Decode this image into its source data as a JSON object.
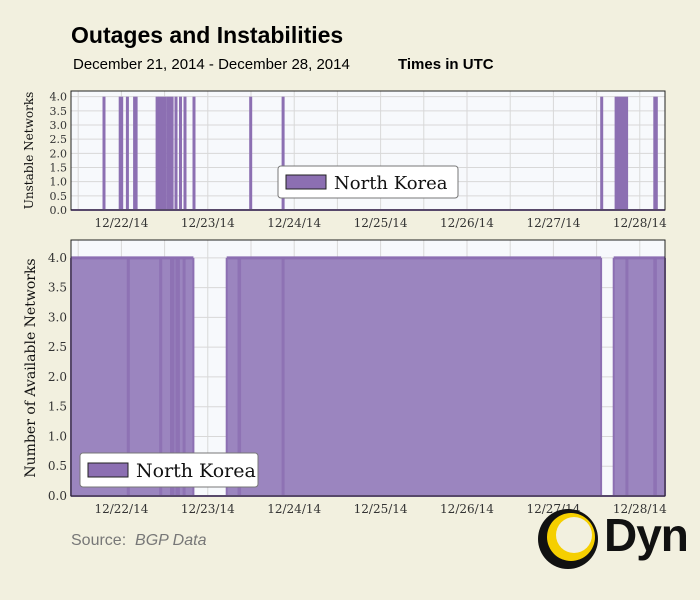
{
  "header": {
    "title": "Outages and Instabilities",
    "date_range": "December 21, 2014 - December 28, 2014",
    "timezone": "Times in UTC"
  },
  "source": {
    "label": "Source:",
    "value": "BGP Data"
  },
  "logo": {
    "text": "Dyn",
    "colors": [
      "#f5cf00",
      "#111111"
    ]
  },
  "colors": {
    "series": "#8c6fb2",
    "series_fill": "#9b85bf",
    "plot_bg": "#f7f9fc",
    "page_bg": "#f2f0df"
  },
  "chart_data": [
    {
      "type": "bar",
      "ylabel": "Unstable Networks",
      "ylim": [
        0,
        4.2
      ],
      "yticks": [
        "0.0",
        "0.5",
        "1.0",
        "1.5",
        "2.0",
        "2.5",
        "3.0",
        "3.5",
        "4.0"
      ],
      "xlim": [
        "2014-12-21T10:00",
        "2014-12-28T07:00"
      ],
      "xticks": [
        "12/22/14",
        "12/23/14",
        "12/24/14",
        "12/25/14",
        "12/26/14",
        "12/27/14",
        "12/28/14"
      ],
      "grid": true,
      "legend": {
        "position": "center",
        "entries": [
          "North Korea"
        ]
      },
      "series": [
        {
          "name": "North Korea",
          "spikes": [
            {
              "start": "2014-12-21T18:45",
              "end": "2014-12-21T19:00",
              "value": 4
            },
            {
              "start": "2014-12-21T23:15",
              "end": "2014-12-22T00:30",
              "value": 4
            },
            {
              "start": "2014-12-22T01:15",
              "end": "2014-12-22T01:30",
              "value": 4
            },
            {
              "start": "2014-12-22T03:15",
              "end": "2014-12-22T04:30",
              "value": 4
            },
            {
              "start": "2014-12-22T09:30",
              "end": "2014-12-22T10:00",
              "value": 4
            },
            {
              "start": "2014-12-22T10:15",
              "end": "2014-12-22T12:30",
              "value": 4
            },
            {
              "start": "2014-12-22T12:30",
              "end": "2014-12-22T14:30",
              "value": 4
            },
            {
              "start": "2014-12-22T14:45",
              "end": "2014-12-22T15:30",
              "value": 4
            },
            {
              "start": "2014-12-22T16:00",
              "end": "2014-12-22T16:15",
              "value": 4
            },
            {
              "start": "2014-12-22T17:15",
              "end": "2014-12-22T17:30",
              "value": 4
            },
            {
              "start": "2014-12-22T19:45",
              "end": "2014-12-22T20:00",
              "value": 4
            },
            {
              "start": "2014-12-23T11:30",
              "end": "2014-12-23T12:00",
              "value": 4
            },
            {
              "start": "2014-12-23T20:30",
              "end": "2014-12-23T21:15",
              "value": 4
            },
            {
              "start": "2014-12-27T13:00",
              "end": "2014-12-27T13:45",
              "value": 4
            },
            {
              "start": "2014-12-27T17:00",
              "end": "2014-12-27T17:30",
              "value": 4
            },
            {
              "start": "2014-12-27T17:45",
              "end": "2014-12-27T20:45",
              "value": 4
            },
            {
              "start": "2014-12-28T03:45",
              "end": "2014-12-28T05:00",
              "value": 4
            }
          ]
        }
      ]
    },
    {
      "type": "area",
      "ylabel": "Number of Available Networks",
      "ylim": [
        0,
        4.3
      ],
      "yticks": [
        "0.0",
        "0.5",
        "1.0",
        "1.5",
        "2.0",
        "2.5",
        "3.0",
        "3.5",
        "4.0"
      ],
      "xlim": [
        "2014-12-21T10:00",
        "2014-12-28T07:00"
      ],
      "xticks": [
        "12/22/14",
        "12/23/14",
        "12/24/14",
        "12/25/14",
        "12/26/14",
        "12/27/14",
        "12/28/14"
      ],
      "grid": true,
      "legend": {
        "position": "bottom-left",
        "entries": [
          "North Korea"
        ]
      },
      "series": [
        {
          "name": "North Korea",
          "baseline": 4,
          "outages": [
            {
              "start": "2014-12-22T20:00",
              "end": "2014-12-23T05:15",
              "value": 0
            },
            {
              "start": "2014-12-27T13:15",
              "end": "2014-12-27T16:45",
              "value": 0
            }
          ],
          "dips": [
            {
              "start": "2014-12-22T01:30",
              "end": "2014-12-22T02:15",
              "value": 0
            },
            {
              "start": "2014-12-22T10:30",
              "end": "2014-12-22T11:15",
              "value": 0
            },
            {
              "start": "2014-12-22T13:30",
              "end": "2014-12-22T14:45",
              "value": 0
            },
            {
              "start": "2014-12-22T15:00",
              "end": "2014-12-22T16:15",
              "value": 0
            },
            {
              "start": "2014-12-22T17:00",
              "end": "2014-12-22T17:45",
              "value": 0
            },
            {
              "start": "2014-12-23T08:15",
              "end": "2014-12-23T09:15",
              "value": 0
            },
            {
              "start": "2014-12-23T20:30",
              "end": "2014-12-23T21:15",
              "value": 0
            },
            {
              "start": "2014-12-27T20:00",
              "end": "2014-12-27T20:45",
              "value": 0
            },
            {
              "start": "2014-12-28T03:45",
              "end": "2014-12-28T04:45",
              "value": 0
            }
          ]
        }
      ]
    }
  ]
}
